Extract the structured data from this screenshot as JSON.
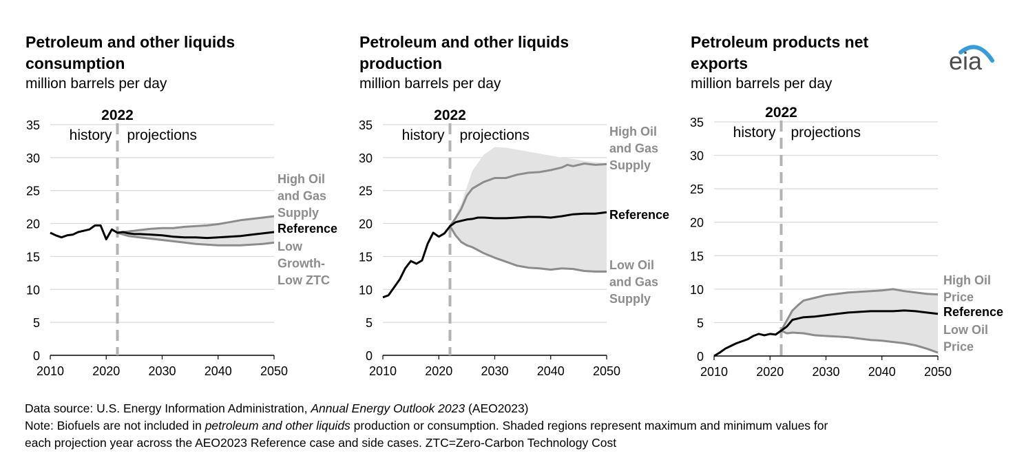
{
  "colors": {
    "shade": "#e3e3e3",
    "side": "#8c8c8c",
    "ref": "#000000",
    "grid": "#d9d9d9",
    "divider": "#b3b3b3",
    "axis": "#000000",
    "logo_arc": "#3a9bd6"
  },
  "logo": {
    "text": "eia"
  },
  "panels": [
    {
      "title_line1": "Petroleum and other liquids",
      "title_line2": "consumption",
      "subtitle": "million barrels per day"
    },
    {
      "title_line1": "Petroleum and other liquids",
      "title_line2": "production",
      "subtitle": "million barrels per day"
    },
    {
      "title_line1": "Petroleum products net",
      "title_line2": "exports",
      "subtitle": "million barrels per day"
    }
  ],
  "chart_data": [
    {
      "type": "line",
      "title": "Petroleum and other liquids consumption",
      "ylabel": "million barrels per day",
      "xlim": [
        2010,
        2050
      ],
      "ylim": [
        0,
        35
      ],
      "xticks": [
        "2010",
        "2020",
        "2030",
        "2040",
        "2050"
      ],
      "yticks": [
        "0",
        "5",
        "10",
        "15",
        "20",
        "25",
        "30",
        "35"
      ],
      "divider_year": 2022,
      "divider_label": "2022",
      "history_label": "history",
      "projection_label": "projections",
      "reference": [
        [
          2010,
          18.6
        ],
        [
          2011,
          18.2
        ],
        [
          2012,
          17.9
        ],
        [
          2013,
          18.2
        ],
        [
          2014,
          18.3
        ],
        [
          2015,
          18.7
        ],
        [
          2016,
          18.9
        ],
        [
          2017,
          19.1
        ],
        [
          2018,
          19.7
        ],
        [
          2019,
          19.7
        ],
        [
          2020,
          17.6
        ],
        [
          2021,
          19.1
        ],
        [
          2022,
          18.6
        ],
        [
          2023,
          18.7
        ],
        [
          2024,
          18.5
        ],
        [
          2025,
          18.4
        ],
        [
          2026,
          18.4
        ],
        [
          2028,
          18.3
        ],
        [
          2030,
          18.2
        ],
        [
          2032,
          18.0
        ],
        [
          2034,
          17.9
        ],
        [
          2036,
          17.9
        ],
        [
          2038,
          17.8
        ],
        [
          2040,
          17.9
        ],
        [
          2042,
          18.0
        ],
        [
          2044,
          18.1
        ],
        [
          2046,
          18.3
        ],
        [
          2048,
          18.5
        ],
        [
          2050,
          18.7
        ]
      ],
      "high": [
        [
          2022,
          18.6
        ],
        [
          2024,
          18.8
        ],
        [
          2026,
          19.0
        ],
        [
          2028,
          19.2
        ],
        [
          2030,
          19.3
        ],
        [
          2032,
          19.3
        ],
        [
          2034,
          19.5
        ],
        [
          2036,
          19.6
        ],
        [
          2038,
          19.7
        ],
        [
          2040,
          19.9
        ],
        [
          2042,
          20.2
        ],
        [
          2044,
          20.5
        ],
        [
          2046,
          20.7
        ],
        [
          2048,
          20.9
        ],
        [
          2050,
          21.1
        ]
      ],
      "low": [
        [
          2022,
          18.6
        ],
        [
          2024,
          18.1
        ],
        [
          2026,
          17.9
        ],
        [
          2028,
          17.7
        ],
        [
          2030,
          17.5
        ],
        [
          2032,
          17.3
        ],
        [
          2034,
          17.1
        ],
        [
          2036,
          16.9
        ],
        [
          2038,
          16.8
        ],
        [
          2040,
          16.7
        ],
        [
          2042,
          16.7
        ],
        [
          2044,
          16.7
        ],
        [
          2046,
          16.8
        ],
        [
          2048,
          16.9
        ],
        [
          2050,
          17.1
        ]
      ],
      "labels": {
        "high": [
          "High Oil",
          "and Gas",
          "Supply"
        ],
        "reference": [
          "Reference"
        ],
        "low": [
          "Low",
          "Growth-",
          "Low ZTC"
        ]
      }
    },
    {
      "type": "line",
      "title": "Petroleum and other liquids production",
      "ylabel": "million barrels per day",
      "xlim": [
        2010,
        2050
      ],
      "ylim": [
        0,
        35
      ],
      "xticks": [
        "2010",
        "2020",
        "2030",
        "2040",
        "2050"
      ],
      "yticks": [
        "0",
        "5",
        "10",
        "15",
        "20",
        "25",
        "30",
        "35"
      ],
      "divider_year": 2022,
      "divider_label": "2022",
      "history_label": "history",
      "projection_label": "projections",
      "reference": [
        [
          2010,
          8.8
        ],
        [
          2011,
          9.1
        ],
        [
          2012,
          10.3
        ],
        [
          2013,
          11.5
        ],
        [
          2014,
          13.2
        ],
        [
          2015,
          14.3
        ],
        [
          2016,
          13.9
        ],
        [
          2017,
          14.4
        ],
        [
          2018,
          16.9
        ],
        [
          2019,
          18.6
        ],
        [
          2020,
          18.0
        ],
        [
          2021,
          18.5
        ],
        [
          2022,
          19.6
        ],
        [
          2023,
          20.2
        ],
        [
          2024,
          20.4
        ],
        [
          2025,
          20.6
        ],
        [
          2026,
          20.7
        ],
        [
          2027,
          20.9
        ],
        [
          2028,
          20.9
        ],
        [
          2030,
          20.8
        ],
        [
          2032,
          20.8
        ],
        [
          2034,
          20.9
        ],
        [
          2036,
          21.0
        ],
        [
          2038,
          21.0
        ],
        [
          2040,
          20.9
        ],
        [
          2042,
          21.1
        ],
        [
          2044,
          21.4
        ],
        [
          2046,
          21.5
        ],
        [
          2048,
          21.5
        ],
        [
          2050,
          21.7
        ]
      ],
      "high": [
        [
          2022,
          19.6
        ],
        [
          2023,
          20.8
        ],
        [
          2024,
          22.2
        ],
        [
          2025,
          24.2
        ],
        [
          2026,
          25.3
        ],
        [
          2028,
          26.3
        ],
        [
          2030,
          26.9
        ],
        [
          2032,
          26.9
        ],
        [
          2034,
          27.4
        ],
        [
          2036,
          27.7
        ],
        [
          2038,
          27.8
        ],
        [
          2040,
          28.1
        ],
        [
          2042,
          28.5
        ],
        [
          2043,
          28.9
        ],
        [
          2044,
          28.7
        ],
        [
          2046,
          29.1
        ],
        [
          2048,
          28.9
        ],
        [
          2050,
          29.0
        ]
      ],
      "max": [
        [
          2022,
          19.6
        ],
        [
          2024,
          23.0
        ],
        [
          2026,
          28.0
        ],
        [
          2028,
          30.4
        ],
        [
          2030,
          31.6
        ],
        [
          2032,
          31.5
        ],
        [
          2034,
          31.2
        ],
        [
          2036,
          30.9
        ],
        [
          2038,
          30.6
        ],
        [
          2040,
          30.3
        ],
        [
          2042,
          30.0
        ],
        [
          2044,
          29.8
        ],
        [
          2046,
          29.5
        ],
        [
          2048,
          29.3
        ],
        [
          2050,
          29.2
        ]
      ],
      "low": [
        [
          2022,
          19.6
        ],
        [
          2023,
          18.2
        ],
        [
          2024,
          17.2
        ],
        [
          2025,
          16.7
        ],
        [
          2026,
          16.4
        ],
        [
          2028,
          15.5
        ],
        [
          2030,
          14.8
        ],
        [
          2032,
          14.2
        ],
        [
          2034,
          13.6
        ],
        [
          2036,
          13.3
        ],
        [
          2038,
          13.2
        ],
        [
          2040,
          13.0
        ],
        [
          2042,
          13.2
        ],
        [
          2044,
          13.1
        ],
        [
          2046,
          12.8
        ],
        [
          2048,
          12.7
        ],
        [
          2050,
          12.7
        ]
      ],
      "labels": {
        "high": [
          "High Oil",
          "and Gas",
          "Supply"
        ],
        "reference": [
          "Reference"
        ],
        "low": [
          "Low Oil",
          "and Gas",
          "Supply"
        ]
      }
    },
    {
      "type": "line",
      "title": "Petroleum products net exports",
      "ylabel": "million barrels per day",
      "xlim": [
        2010,
        2050
      ],
      "ylim": [
        0,
        35
      ],
      "xticks": [
        "2010",
        "2020",
        "2030",
        "2040",
        "2050"
      ],
      "yticks": [
        "0",
        "5",
        "10",
        "15",
        "20",
        "25",
        "30",
        "35"
      ],
      "divider_year": 2022,
      "divider_label": "2022",
      "history_label": "history",
      "projection_label": "projections",
      "reference": [
        [
          2010,
          0.0
        ],
        [
          2011,
          0.5
        ],
        [
          2012,
          1.1
        ],
        [
          2013,
          1.5
        ],
        [
          2014,
          1.9
        ],
        [
          2015,
          2.2
        ],
        [
          2016,
          2.5
        ],
        [
          2017,
          3.0
        ],
        [
          2018,
          3.3
        ],
        [
          2019,
          3.1
        ],
        [
          2020,
          3.3
        ],
        [
          2021,
          3.2
        ],
        [
          2022,
          3.8
        ],
        [
          2023,
          4.4
        ],
        [
          2024,
          5.4
        ],
        [
          2025,
          5.6
        ],
        [
          2026,
          5.8
        ],
        [
          2028,
          5.9
        ],
        [
          2030,
          6.1
        ],
        [
          2032,
          6.3
        ],
        [
          2034,
          6.5
        ],
        [
          2036,
          6.6
        ],
        [
          2038,
          6.7
        ],
        [
          2040,
          6.7
        ],
        [
          2042,
          6.7
        ],
        [
          2044,
          6.8
        ],
        [
          2046,
          6.7
        ],
        [
          2048,
          6.5
        ],
        [
          2050,
          6.3
        ]
      ],
      "high": [
        [
          2022,
          3.8
        ],
        [
          2023,
          5.3
        ],
        [
          2024,
          6.8
        ],
        [
          2025,
          7.6
        ],
        [
          2026,
          8.3
        ],
        [
          2028,
          8.7
        ],
        [
          2030,
          9.1
        ],
        [
          2032,
          9.3
        ],
        [
          2034,
          9.5
        ],
        [
          2036,
          9.6
        ],
        [
          2038,
          9.7
        ],
        [
          2040,
          9.8
        ],
        [
          2042,
          10.0
        ],
        [
          2044,
          9.7
        ],
        [
          2046,
          9.5
        ],
        [
          2048,
          9.3
        ],
        [
          2050,
          9.2
        ]
      ],
      "low": [
        [
          2022,
          3.8
        ],
        [
          2023,
          3.4
        ],
        [
          2024,
          3.5
        ],
        [
          2026,
          3.4
        ],
        [
          2028,
          3.1
        ],
        [
          2030,
          3.0
        ],
        [
          2032,
          2.9
        ],
        [
          2034,
          2.8
        ],
        [
          2036,
          2.6
        ],
        [
          2038,
          2.4
        ],
        [
          2040,
          2.3
        ],
        [
          2042,
          2.1
        ],
        [
          2044,
          1.9
        ],
        [
          2046,
          1.6
        ],
        [
          2048,
          1.1
        ],
        [
          2050,
          0.5
        ]
      ],
      "labels": {
        "high": [
          "High Oil",
          "Price"
        ],
        "reference": [
          "Reference"
        ],
        "low": [
          "Low Oil",
          "Price"
        ]
      }
    }
  ],
  "notes": {
    "source_prefix": "Data source: U.S. Energy Information Administration, ",
    "source_italic": "Annual Energy Outlook 2023",
    "source_suffix": " (AEO2023)",
    "note_prefix": "Note: Biofuels are not included in ",
    "note_italic": "petroleum and other liquids",
    "note_suffix": " production or consumption. Shaded regions represent maximum and minimum values for",
    "note_line2": "each projection year across the AEO2023 Reference case and side cases. ZTC=Zero-Carbon Technology Cost"
  }
}
